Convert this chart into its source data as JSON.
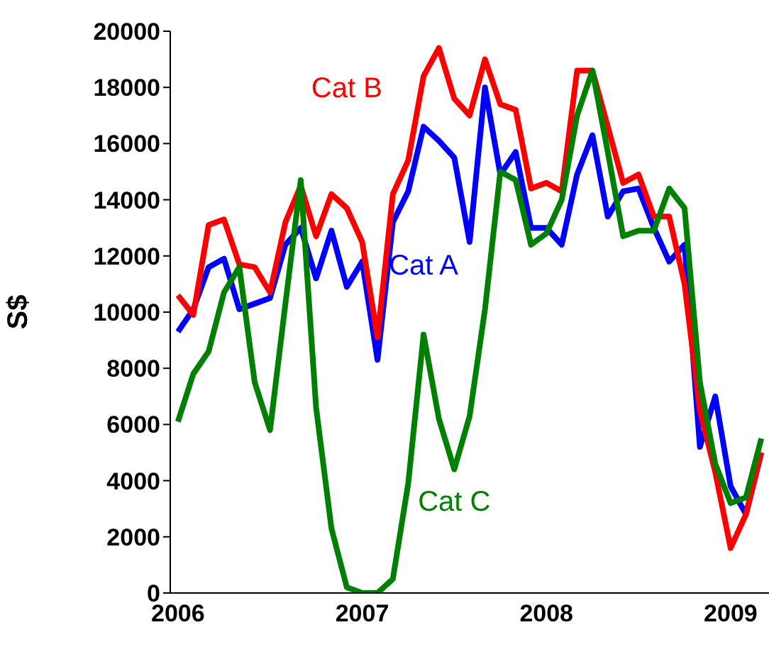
{
  "chart_data": {
    "type": "line",
    "ylabel": "S$",
    "categories": [
      "2006",
      null,
      null,
      null,
      null,
      null,
      null,
      null,
      null,
      null,
      null,
      null,
      "2007",
      null,
      null,
      null,
      null,
      null,
      null,
      null,
      null,
      null,
      null,
      null,
      "2008",
      null,
      null,
      null,
      null,
      null,
      null,
      null,
      null,
      null,
      null,
      null,
      "2009",
      null,
      null
    ],
    "series": [
      {
        "name": "Cat A",
        "color": "#0000ff",
        "values": [
          9300,
          10100,
          11600,
          11900,
          10100,
          10300,
          10500,
          12400,
          13000,
          11200,
          12900,
          10900,
          11800,
          8300,
          13200,
          14300,
          16600,
          16100,
          15500,
          12500,
          18000,
          14900,
          15700,
          13000,
          13000,
          12400,
          14900,
          16300,
          13400,
          14300,
          14400,
          13000,
          11800,
          12400,
          5200,
          7000,
          3800,
          2800,
          5000
        ]
      },
      {
        "name": "Cat B",
        "color": "#ff0000",
        "values": [
          10600,
          9900,
          13100,
          13300,
          11700,
          11600,
          10700,
          13200,
          14500,
          12700,
          14200,
          13700,
          12500,
          9100,
          14200,
          15400,
          18400,
          19400,
          17600,
          17000,
          19000,
          17400,
          17200,
          14400,
          14600,
          14300,
          18600,
          18600,
          16600,
          14600,
          14900,
          13400,
          13400,
          11000,
          6500,
          4300,
          1600,
          2800,
          5000
        ]
      },
      {
        "name": "Cat C",
        "color": "#008000",
        "values": [
          6100,
          7800,
          8600,
          10700,
          11600,
          7500,
          5800,
          10300,
          14700,
          6600,
          2300,
          200,
          0,
          0,
          500,
          3900,
          9200,
          6200,
          4400,
          6300,
          10100,
          15000,
          14700,
          12400,
          12800,
          14000,
          17000,
          18600,
          15700,
          12700,
          12900,
          12900,
          14400,
          13700,
          7500,
          4600,
          3200,
          3400,
          5500
        ]
      }
    ],
    "ylim": [
      0,
      20000
    ],
    "yticks": [
      0,
      2000,
      4000,
      6000,
      8000,
      10000,
      12000,
      14000,
      16000,
      18000,
      20000
    ],
    "grid": false,
    "legend": false,
    "marker": "none",
    "line_style": "solid"
  }
}
